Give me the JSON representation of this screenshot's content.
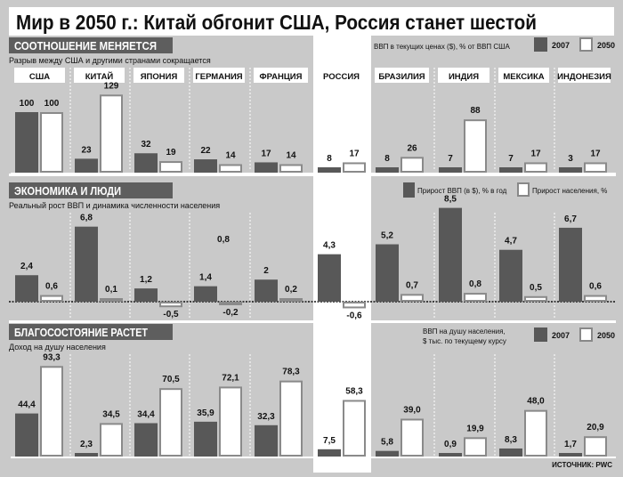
{
  "title": "Мир в 2050 г.: Китай обгонит США, Россия станет шестой",
  "source": "ИСТОЧНИК: PWC",
  "colors": {
    "dark": "#585858",
    "light": "#ffffff",
    "background": "#c9c9c9",
    "header": "#5e5e5e"
  },
  "countries": [
    "США",
    "КИТАЙ",
    "ЯПОНИЯ",
    "ГЕРМАНИЯ",
    "ФРАНЦИЯ",
    "РОССИЯ",
    "БРАЗИЛИЯ",
    "ИНДИЯ",
    "МЕКСИКА",
    "ИНДОНЕЗИЯ"
  ],
  "chart_data": [
    {
      "type": "bar",
      "title": "СООТНОШЕНИЕ МЕНЯЕТСЯ",
      "subtitle": "Разрыв между США и другими странами сокращается",
      "legend_title": "ВВП в текущих ценах ($), % от ВВП США",
      "legend_placement": "top-right",
      "categories": [
        "США",
        "КИТАЙ",
        "ЯПОНИЯ",
        "ГЕРМАНИЯ",
        "ФРАНЦИЯ",
        "РОССИЯ",
        "БРАЗИЛИЯ",
        "ИНДИЯ",
        "МЕКСИКА",
        "ИНДОНЕЗИЯ"
      ],
      "series": [
        {
          "name": "2007",
          "values": [
            100,
            23,
            32,
            22,
            17,
            8,
            8,
            7,
            7,
            3
          ],
          "labels": [
            "100",
            "23",
            "32",
            "22",
            "17",
            "8",
            "8",
            "7",
            "7",
            "3"
          ]
        },
        {
          "name": "2050",
          "values": [
            100,
            129,
            19,
            14,
            14,
            17,
            26,
            88,
            17,
            17
          ],
          "labels": [
            "100",
            "129",
            "19",
            "14",
            "14",
            "17",
            "26",
            "88",
            "17",
            "17"
          ]
        }
      ]
    },
    {
      "type": "bar",
      "title": "ЭКОНОМИКА И ЛЮДИ",
      "subtitle": "Реальный рост ВВП и динамика численности населения",
      "legend_placement": "top-right",
      "categories": [
        "США",
        "КИТАЙ",
        "ЯПОНИЯ",
        "ГЕРМАНИЯ",
        "ФРАНЦИЯ",
        "РОССИЯ",
        "БРАЗИЛИЯ",
        "ИНДИЯ",
        "МЕКСИКА",
        "ИНДОНЕЗИЯ"
      ],
      "series": [
        {
          "name": "Прирост ВВП (в $), % в год",
          "values": [
            2.4,
            6.8,
            1.2,
            1.4,
            2,
            4.3,
            5.2,
            8.5,
            4.7,
            6.7
          ],
          "labels": [
            "2,4",
            "6,8",
            "1,2",
            "1,4",
            "2",
            "4,3",
            "5,2",
            "8,5",
            "4,7",
            "6,7"
          ]
        },
        {
          "name": "Прирост населения, %",
          "values": [
            0.6,
            0.1,
            -0.5,
            -0.2,
            0.2,
            -0.6,
            0.7,
            0.8,
            0.5,
            0.6
          ],
          "labels": [
            "0,6",
            "0,1",
            "-0,5",
            "-0,2",
            "0,2",
            "-0,6",
            "0,7",
            "0,8",
            "0,5",
            "0,6"
          ]
        }
      ],
      "annotations": [
        {
          "category": "ГЕРМАНИЯ",
          "text": "0,8"
        }
      ]
    },
    {
      "type": "bar",
      "title": "БЛАГОСОСТОЯНИЕ РАСТЕТ",
      "subtitle": "Доход на душу населения",
      "legend_title": [
        "ВВП на душу населения,",
        "$ тыс. по текущему курсу"
      ],
      "legend_placement": "top-right",
      "categories": [
        "США",
        "КИТАЙ",
        "ЯПОНИЯ",
        "ГЕРМАНИЯ",
        "ФРАНЦИЯ",
        "РОССИЯ",
        "БРАЗИЛИЯ",
        "ИНДИЯ",
        "МЕКСИКА",
        "ИНДОНЕЗИЯ"
      ],
      "series": [
        {
          "name": "2007",
          "values": [
            44.4,
            2.3,
            34.4,
            35.9,
            32.3,
            7.5,
            5.8,
            0.9,
            8.3,
            1.7
          ],
          "labels": [
            "44,4",
            "2,3",
            "34,4",
            "35,9",
            "32,3",
            "7,5",
            "5,8",
            "0,9",
            "8,3",
            "1,7"
          ]
        },
        {
          "name": "2050",
          "values": [
            93.3,
            34.5,
            70.5,
            72.1,
            78.3,
            58.3,
            39.0,
            19.9,
            48.0,
            20.9
          ],
          "labels": [
            "93,3",
            "34,5",
            "70,5",
            "72,1",
            "78,3",
            "58,3",
            "39,0",
            "19,9",
            "48,0",
            "20,9"
          ]
        }
      ]
    }
  ]
}
